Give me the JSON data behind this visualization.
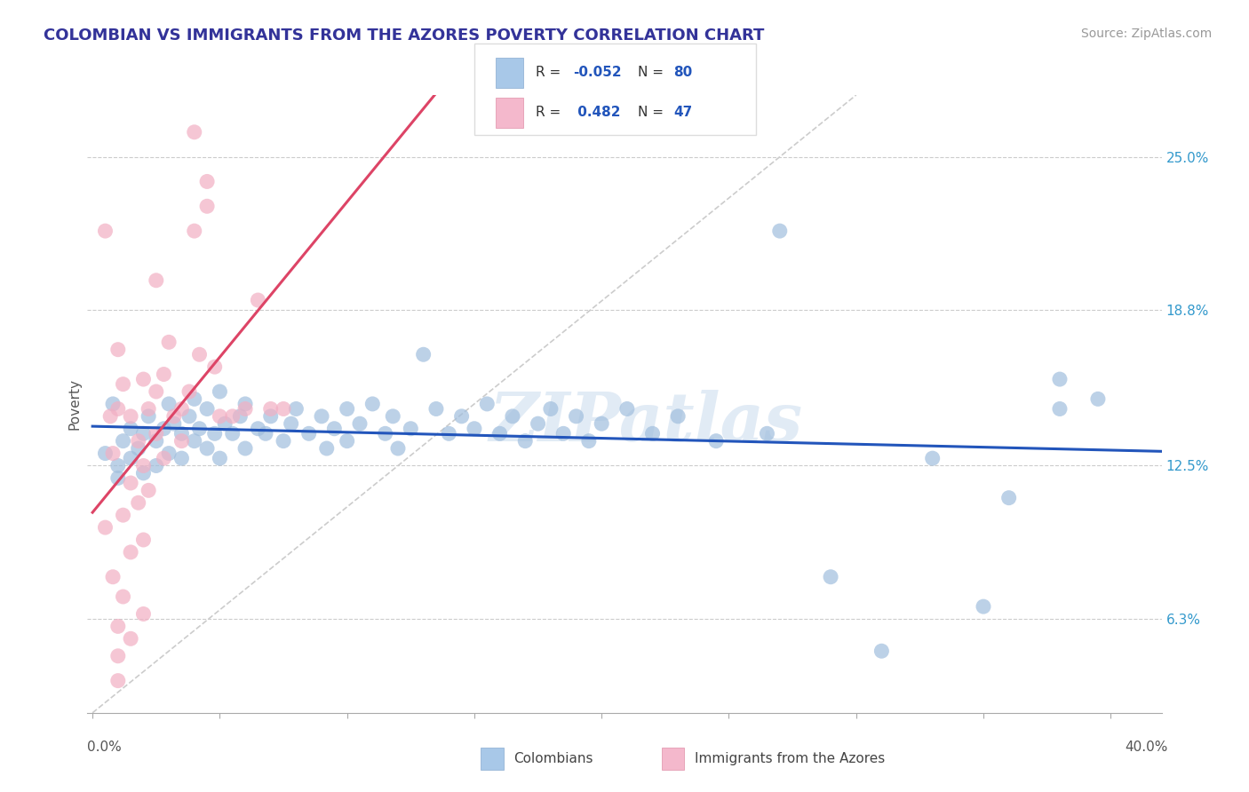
{
  "title": "COLOMBIAN VS IMMIGRANTS FROM THE AZORES POVERTY CORRELATION CHART",
  "source": "Source: ZipAtlas.com",
  "ylabel": "Poverty",
  "ytick_labels": [
    "6.3%",
    "12.5%",
    "18.8%",
    "25.0%"
  ],
  "ytick_values": [
    0.063,
    0.125,
    0.188,
    0.25
  ],
  "xlim": [
    -0.002,
    0.42
  ],
  "ylim": [
    0.025,
    0.275
  ],
  "legend_bottom": [
    "Colombians",
    "Immigrants from the Azores"
  ],
  "watermark": "ZIPatlas",
  "blue_scatter_color": "#a0bedd",
  "pink_scatter_color": "#f2afc3",
  "blue_line_color": "#2255bb",
  "pink_line_color": "#dd4466",
  "dashed_line_color": "#cccccc",
  "background_color": "#ffffff",
  "grid_color": "#cccccc",
  "title_color": "#333399",
  "source_color": "#999999",
  "blue_points": [
    [
      0.005,
      0.13
    ],
    [
      0.008,
      0.15
    ],
    [
      0.01,
      0.125
    ],
    [
      0.01,
      0.12
    ],
    [
      0.012,
      0.135
    ],
    [
      0.015,
      0.14
    ],
    [
      0.015,
      0.128
    ],
    [
      0.018,
      0.132
    ],
    [
      0.02,
      0.138
    ],
    [
      0.02,
      0.122
    ],
    [
      0.022,
      0.145
    ],
    [
      0.025,
      0.135
    ],
    [
      0.025,
      0.125
    ],
    [
      0.028,
      0.14
    ],
    [
      0.03,
      0.15
    ],
    [
      0.03,
      0.13
    ],
    [
      0.032,
      0.142
    ],
    [
      0.035,
      0.138
    ],
    [
      0.035,
      0.128
    ],
    [
      0.038,
      0.145
    ],
    [
      0.04,
      0.152
    ],
    [
      0.04,
      0.135
    ],
    [
      0.042,
      0.14
    ],
    [
      0.045,
      0.148
    ],
    [
      0.045,
      0.132
    ],
    [
      0.048,
      0.138
    ],
    [
      0.05,
      0.155
    ],
    [
      0.05,
      0.128
    ],
    [
      0.052,
      0.142
    ],
    [
      0.055,
      0.138
    ],
    [
      0.058,
      0.145
    ],
    [
      0.06,
      0.15
    ],
    [
      0.06,
      0.132
    ],
    [
      0.065,
      0.14
    ],
    [
      0.068,
      0.138
    ],
    [
      0.07,
      0.145
    ],
    [
      0.075,
      0.135
    ],
    [
      0.078,
      0.142
    ],
    [
      0.08,
      0.148
    ],
    [
      0.085,
      0.138
    ],
    [
      0.09,
      0.145
    ],
    [
      0.092,
      0.132
    ],
    [
      0.095,
      0.14
    ],
    [
      0.1,
      0.148
    ],
    [
      0.1,
      0.135
    ],
    [
      0.105,
      0.142
    ],
    [
      0.11,
      0.15
    ],
    [
      0.115,
      0.138
    ],
    [
      0.118,
      0.145
    ],
    [
      0.12,
      0.132
    ],
    [
      0.125,
      0.14
    ],
    [
      0.13,
      0.17
    ],
    [
      0.135,
      0.148
    ],
    [
      0.14,
      0.138
    ],
    [
      0.145,
      0.145
    ],
    [
      0.15,
      0.14
    ],
    [
      0.155,
      0.15
    ],
    [
      0.16,
      0.138
    ],
    [
      0.165,
      0.145
    ],
    [
      0.17,
      0.135
    ],
    [
      0.175,
      0.142
    ],
    [
      0.18,
      0.148
    ],
    [
      0.185,
      0.138
    ],
    [
      0.19,
      0.145
    ],
    [
      0.195,
      0.135
    ],
    [
      0.2,
      0.142
    ],
    [
      0.21,
      0.148
    ],
    [
      0.22,
      0.138
    ],
    [
      0.23,
      0.145
    ],
    [
      0.245,
      0.135
    ],
    [
      0.265,
      0.138
    ],
    [
      0.27,
      0.22
    ],
    [
      0.29,
      0.08
    ],
    [
      0.31,
      0.05
    ],
    [
      0.33,
      0.128
    ],
    [
      0.35,
      0.068
    ],
    [
      0.38,
      0.16
    ],
    [
      0.38,
      0.148
    ],
    [
      0.395,
      0.152
    ],
    [
      0.36,
      0.112
    ]
  ],
  "pink_points": [
    [
      0.005,
      0.22
    ],
    [
      0.005,
      0.1
    ],
    [
      0.007,
      0.145
    ],
    [
      0.008,
      0.13
    ],
    [
      0.008,
      0.08
    ],
    [
      0.01,
      0.172
    ],
    [
      0.01,
      0.148
    ],
    [
      0.01,
      0.06
    ],
    [
      0.01,
      0.048
    ],
    [
      0.01,
      0.038
    ],
    [
      0.012,
      0.158
    ],
    [
      0.012,
      0.105
    ],
    [
      0.012,
      0.072
    ],
    [
      0.015,
      0.145
    ],
    [
      0.015,
      0.118
    ],
    [
      0.015,
      0.09
    ],
    [
      0.015,
      0.055
    ],
    [
      0.018,
      0.135
    ],
    [
      0.018,
      0.11
    ],
    [
      0.02,
      0.16
    ],
    [
      0.02,
      0.125
    ],
    [
      0.02,
      0.095
    ],
    [
      0.02,
      0.065
    ],
    [
      0.022,
      0.148
    ],
    [
      0.022,
      0.115
    ],
    [
      0.025,
      0.2
    ],
    [
      0.025,
      0.155
    ],
    [
      0.025,
      0.138
    ],
    [
      0.028,
      0.162
    ],
    [
      0.028,
      0.128
    ],
    [
      0.03,
      0.175
    ],
    [
      0.032,
      0.145
    ],
    [
      0.035,
      0.148
    ],
    [
      0.035,
      0.135
    ],
    [
      0.038,
      0.155
    ],
    [
      0.04,
      0.26
    ],
    [
      0.04,
      0.22
    ],
    [
      0.042,
      0.17
    ],
    [
      0.045,
      0.24
    ],
    [
      0.045,
      0.23
    ],
    [
      0.048,
      0.165
    ],
    [
      0.05,
      0.145
    ],
    [
      0.055,
      0.145
    ],
    [
      0.06,
      0.148
    ],
    [
      0.065,
      0.192
    ],
    [
      0.07,
      0.148
    ],
    [
      0.075,
      0.148
    ]
  ]
}
